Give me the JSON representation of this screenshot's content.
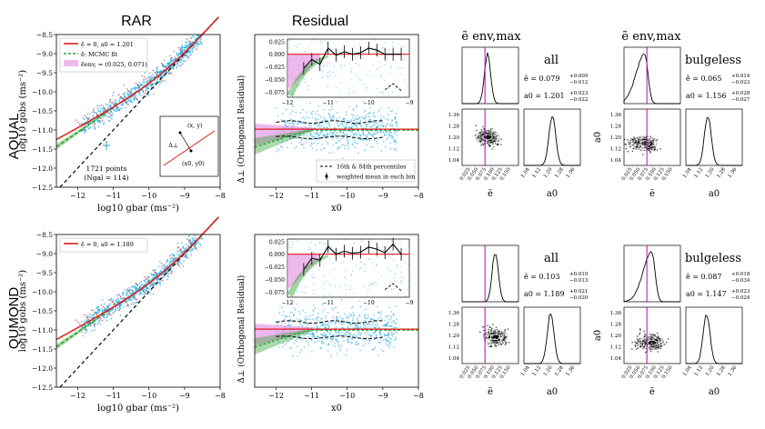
{
  "headers": {
    "rar": "RAR",
    "residual": "Residual",
    "e_env_max": "ẽ env,max"
  },
  "row_labels": [
    "AQUAL",
    "QUMOND"
  ],
  "colors": {
    "data": "#29a9e1",
    "null": "#e31a1c",
    "mcmc": "#2ca02c",
    "band": "#e79ae6",
    "hist": "#000000",
    "vline": "#c000c0",
    "dashed": "#000000"
  },
  "rar_axes": {
    "xlabel": "log10 gbar (ms⁻²)",
    "ylabel": "log10 gobs (ms⁻²)",
    "xticks": [
      "−12",
      "−11",
      "−10",
      "−9",
      "−8"
    ],
    "yticks": [
      "−8.5",
      "−9.0",
      "−9.5",
      "−10.0",
      "−10.5",
      "−11.0",
      "−11.5",
      "−12.0",
      "−12.5"
    ]
  },
  "residual_axes": {
    "xlabel": "x0",
    "ylabel": "Δ⊥ (Orthogonal Residual)",
    "xticks": [
      "−12",
      "−11",
      "−10",
      "−9",
      "−8"
    ],
    "inset_yticks": [
      "0.025",
      "0.000",
      "−0.025",
      "−0.050",
      "−0.075"
    ],
    "inset_xticks": [
      "−12",
      "−11",
      "−10",
      "−9"
    ]
  },
  "corner_axes": {
    "xlabel_e": "ẽ",
    "xlabel_a0": "a0",
    "ylabel_a0": "a0",
    "e_ticks": [
      "0.025",
      "0.050",
      "0.075",
      "0.100",
      "0.125",
      "0.150"
    ],
    "a0_ticks": [
      "1.04",
      "1.12",
      "1.20",
      "1.28",
      "1.36"
    ]
  },
  "rows": [
    {
      "name": "AQUAL",
      "legend": [
        "ẽ = 0, a0 = 1.201",
        "ẽ: MCMC fit",
        "ẽenv, = (0.025, 0.071)"
      ],
      "points_note": "1721 points",
      "points_note2": "(Ngal = 114)",
      "inset_labels": [
        "(x, y)",
        "Δ⊥",
        "(x0, y0)"
      ],
      "residual_legend": [
        "16th & 84th percentiles",
        "weighted mean in each bin"
      ],
      "all": {
        "title": "all",
        "e_text": "ẽ = 0.079",
        "e_up": "+0.009",
        "e_dn": "−0.012",
        "a0_text": "a0 = 1.201",
        "a0_up": "+0.023",
        "a0_dn": "−0.022"
      },
      "bulgeless": {
        "title": "bulgeless",
        "e_text": "ẽ = 0.065",
        "e_up": "+0.014",
        "e_dn": "−0.023",
        "a0_text": "a0 = 1.156",
        "a0_up": "+0.028",
        "a0_dn": "−0.027"
      }
    },
    {
      "name": "QUMOND",
      "legend": [
        "ẽ = 0, a0 = 1.189"
      ],
      "residual_legend": [],
      "all": {
        "title": "all",
        "e_text": "ẽ = 0.103",
        "e_up": "+0.010",
        "e_dn": "−0.013",
        "a0_text": "a0 = 1.189",
        "a0_up": "+0.021",
        "a0_dn": "−0.020"
      },
      "bulgeless": {
        "title": "bulgeless",
        "e_text": "ẽ = 0.087",
        "e_up": "+0.018",
        "e_dn": "−0.034",
        "a0_text": "a0 = 1.147",
        "a0_up": "+0.023",
        "a0_dn": "−0.024"
      }
    }
  ],
  "chart_data": [
    {
      "type": "scatter",
      "title": "RAR",
      "panel": "AQUAL",
      "xlabel": "log10 gbar (ms⁻²)",
      "ylabel": "log10 gobs (ms⁻²)",
      "xlim": [
        -12.6,
        -8.0
      ],
      "ylim": [
        -12.5,
        -8.5
      ],
      "series": [
        {
          "name": "data points",
          "n": 1721
        },
        {
          "name": "ẽ = 0, a0 = 1.201",
          "style": "red solid"
        },
        {
          "name": "ẽ: MCMC fit",
          "style": "green dashed"
        },
        {
          "name": "1:1 line",
          "style": "black dashed"
        }
      ]
    },
    {
      "type": "scatter",
      "title": "Residual",
      "panel": "AQUAL",
      "xlabel": "x0",
      "ylabel": "Δ⊥ (Orthogonal Residual)",
      "xlim": [
        -12.6,
        -8.0
      ],
      "ylim": [
        -0.3,
        0.3
      ],
      "inset": {
        "xlim": [
          -12,
          -9
        ],
        "ylim": [
          -0.085,
          0.03
        ],
        "weighted_mean": {
          "x": [
            -11.6,
            -11.4,
            -11.2,
            -11.0,
            -10.8,
            -10.6,
            -10.4,
            -10.2,
            -10.0,
            -9.8,
            -9.6,
            -9.4,
            -9.2
          ],
          "y": [
            -0.028,
            -0.01,
            -0.02,
            0.012,
            -0.002,
            0.005,
            0.0,
            0.003,
            0.012,
            0.008,
            0.0,
            0.0,
            0.0
          ]
        }
      }
    },
    {
      "type": "scatter",
      "title": "RAR",
      "panel": "QUMOND",
      "xlabel": "log10 gbar (ms⁻²)",
      "ylabel": "log10 gobs (ms⁻²)",
      "xlim": [
        -12.6,
        -8.0
      ],
      "ylim": [
        -12.5,
        -8.5
      ]
    },
    {
      "type": "scatter",
      "title": "Residual",
      "panel": "QUMOND",
      "xlabel": "x0",
      "ylabel": "Δ⊥ (Orthogonal Residual)",
      "xlim": [
        -12.6,
        -8.0
      ],
      "ylim": [
        -0.3,
        0.3
      ],
      "inset": {
        "xlim": [
          -12,
          -9
        ],
        "ylim": [
          -0.085,
          0.03
        ],
        "weighted_mean": {
          "x": [
            -11.6,
            -11.4,
            -11.2,
            -11.0,
            -10.8,
            -10.6,
            -10.4,
            -10.2,
            -10.0,
            -9.8,
            -9.6,
            -9.4,
            -9.2
          ],
          "y": [
            -0.03,
            -0.008,
            -0.012,
            0.015,
            0.0,
            0.006,
            0.002,
            0.004,
            0.014,
            0.01,
            0.003,
            0.02,
            0.0
          ]
        }
      }
    },
    {
      "type": "corner",
      "panel": "AQUAL all",
      "e_median": 0.079,
      "a0_median": 1.201,
      "e_env_max": 0.071
    },
    {
      "type": "corner",
      "panel": "AQUAL bulgeless",
      "e_median": 0.065,
      "a0_median": 1.156,
      "e_env_max": 0.071
    },
    {
      "type": "corner",
      "panel": "QUMOND all",
      "e_median": 0.103,
      "a0_median": 1.189,
      "e_env_max": 0.071
    },
    {
      "type": "corner",
      "panel": "QUMOND bulgeless",
      "e_median": 0.087,
      "a0_median": 1.147,
      "e_env_max": 0.071
    }
  ]
}
